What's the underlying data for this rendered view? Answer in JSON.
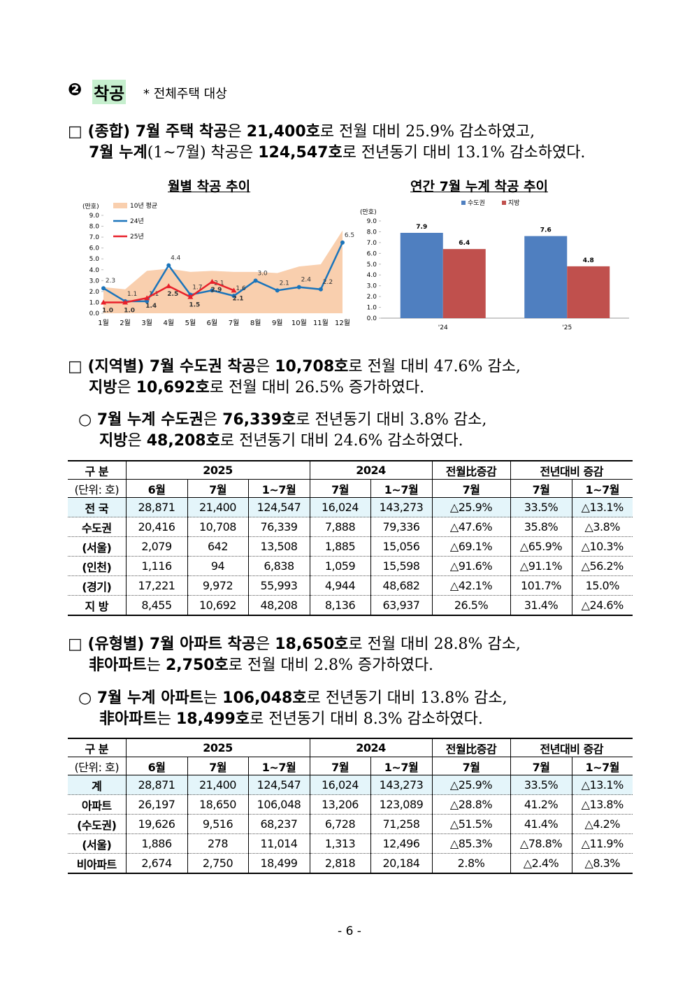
{
  "section": {
    "number": "❷",
    "title": "착공",
    "note": "* 전체주택 대상"
  },
  "paragraphs": [
    {
      "lines": [
        [
          {
            "text": "□ (종합) 7월 주택 착공",
            "bold": true
          },
          {
            "text": "은 ",
            "bold": false
          },
          {
            "text": "21,400호",
            "bold": true
          },
          {
            "text": "로 전월 대비 25.9% 감소하였고,",
            "bold": false
          }
        ],
        [
          {
            "text": "7월 누계",
            "bold": true
          },
          {
            "text": "(1~7월) 착공은 ",
            "bold": false
          },
          {
            "text": "124,547호",
            "bold": true
          },
          {
            "text": "로 전년동기 대비 13.1% 감소하였다.",
            "bold": false
          }
        ]
      ]
    },
    {
      "lines": [
        [
          {
            "text": "□ (지역별) 7월 수도권 착공",
            "bold": true
          },
          {
            "text": "은 ",
            "bold": false
          },
          {
            "text": "10,708호",
            "bold": true
          },
          {
            "text": "로 전월 대비 47.6% 감소,",
            "bold": false
          }
        ],
        [
          {
            "text": "지방",
            "bold": true
          },
          {
            "text": "은 ",
            "bold": false
          },
          {
            "text": "10,692호",
            "bold": true
          },
          {
            "text": "로 전월 대비 26.5% 증가하였다.",
            "bold": false
          }
        ]
      ]
    },
    {
      "lines": [
        [
          {
            "text": "○ 7월 누계 수도권",
            "bold": true
          },
          {
            "text": "은 ",
            "bold": false
          },
          {
            "text": "76,339호",
            "bold": true
          },
          {
            "text": "로 전년동기 대비 3.8% 감소,",
            "bold": false
          }
        ],
        [
          {
            "text": "지방",
            "bold": true
          },
          {
            "text": "은 ",
            "bold": false
          },
          {
            "text": "48,208호",
            "bold": true
          },
          {
            "text": "로 전년동기 대비 24.6% 감소하였다.",
            "bold": false
          }
        ]
      ]
    },
    {
      "lines": [
        [
          {
            "text": "□ (유형별) 7월 아파트 착공",
            "bold": true
          },
          {
            "text": "은 ",
            "bold": false
          },
          {
            "text": "18,650호",
            "bold": true
          },
          {
            "text": "로 전월 대비 28.8% 감소,",
            "bold": false
          }
        ],
        [
          {
            "text": "非아파트",
            "bold": true
          },
          {
            "text": "는 ",
            "bold": false
          },
          {
            "text": "2,750호",
            "bold": true
          },
          {
            "text": "로 전월 대비 2.8% 증가하였다.",
            "bold": false
          }
        ]
      ]
    },
    {
      "lines": [
        [
          {
            "text": "○ 7월 누계 아파트",
            "bold": true
          },
          {
            "text": "는 ",
            "bold": false
          },
          {
            "text": "106,048호",
            "bold": true
          },
          {
            "text": "로 전년동기 대비 13.8% 감소,",
            "bold": false
          }
        ],
        [
          {
            "text": "非아파트",
            "bold": true
          },
          {
            "text": "는 ",
            "bold": false
          },
          {
            "text": "18,499호",
            "bold": true
          },
          {
            "text": "로 전년동기 대비 8.3% 감소하였다.",
            "bold": false
          }
        ]
      ]
    }
  ],
  "chart_data": [
    {
      "type": "line",
      "title": "월별 착공 추이",
      "y_label": "(만호)",
      "categories": [
        "1월",
        "2월",
        "3월",
        "4월",
        "5월",
        "6월",
        "7월",
        "8월",
        "9월",
        "10월",
        "11월",
        "12월"
      ],
      "ylim": [
        0,
        9
      ],
      "yticks": [
        {
          "value": 0,
          "label": "0.0"
        },
        {
          "value": 1,
          "label": "1.0"
        },
        {
          "value": 2,
          "label": "2.0"
        },
        {
          "value": 3,
          "label": "3.0"
        },
        {
          "value": 4,
          "label": "4.0"
        },
        {
          "value": 5,
          "label": "5.0"
        },
        {
          "value": 6,
          "label": "6.0"
        },
        {
          "value": 7,
          "label": "7.0"
        },
        {
          "value": 8,
          "label": "8.0"
        },
        {
          "value": 9,
          "label": "9.0"
        }
      ],
      "series": [
        {
          "name": "10년 평균",
          "color": "#f9cfae",
          "style": "area",
          "values": [
            2.4,
            2.2,
            3.9,
            4.1,
            3.8,
            3.9,
            3.8,
            3.8,
            3.7,
            4.3,
            4.5,
            7.6
          ]
        },
        {
          "name": "24년",
          "color": "#1a74bb",
          "style": "line",
          "values": [
            2.3,
            1.1,
            1.1,
            4.4,
            1.7,
            2.1,
            1.6,
            3.0,
            2.1,
            2.4,
            2.2,
            6.5
          ],
          "value_labels": [
            "2.3",
            "1.1",
            "1.1",
            "4.4",
            "1.7",
            "2.1",
            "1.6",
            "3.0",
            "2.1",
            "2.4",
            "2.2",
            "6.5"
          ]
        },
        {
          "name": "25년",
          "color": "#e8202a",
          "style": "line",
          "values": [
            1.0,
            1.0,
            1.4,
            2.5,
            1.5,
            2.9,
            2.1,
            null,
            null,
            null,
            null,
            null
          ],
          "value_labels": [
            "1.0",
            "1.0",
            "1.4",
            "2.5",
            "1.5",
            "2.9",
            "2.1",
            null,
            null,
            null,
            null,
            null
          ]
        }
      ]
    },
    {
      "type": "bar",
      "title": "연간 7월 누계 착공 추이",
      "y_label": "(만호)",
      "categories": [
        "'24",
        "'25"
      ],
      "ylim": [
        0,
        9
      ],
      "yticks": [
        {
          "value": 0,
          "label": "0.0"
        },
        {
          "value": 1,
          "label": "1.0"
        },
        {
          "value": 2,
          "label": "2.0"
        },
        {
          "value": 3,
          "label": "3.0"
        },
        {
          "value": 4,
          "label": "4.0"
        },
        {
          "value": 5,
          "label": "5.0"
        },
        {
          "value": 6,
          "label": "6.0"
        },
        {
          "value": 7,
          "label": "7.0"
        },
        {
          "value": 8,
          "label": "8.0"
        },
        {
          "value": 9,
          "label": "9.0"
        }
      ],
      "series": [
        {
          "name": "수도권",
          "color": "#4f7fc0",
          "values": [
            7.9,
            7.6
          ]
        },
        {
          "name": "지방",
          "color": "#c0504d",
          "values": [
            6.4,
            4.8
          ]
        }
      ]
    }
  ],
  "tables": [
    {
      "header": [
        [
          {
            "text": "구 분"
          },
          {
            "text": "2025",
            "span": 3
          },
          {
            "text": "2024",
            "span": 2
          },
          {
            "text": "전월比증감"
          },
          {
            "text": "전년대비 증감",
            "span": 2
          }
        ],
        [
          {
            "text": "(단위: 호)"
          },
          {
            "text": "6월"
          },
          {
            "text": "7월"
          },
          {
            "text": "1~7월"
          },
          {
            "text": "7월"
          },
          {
            "text": "1~7월"
          },
          {
            "text": "7월"
          },
          {
            "text": "7월"
          },
          {
            "text": "1~7월"
          }
        ]
      ],
      "rows": [
        [
          "전 국",
          "28,871",
          "21,400",
          "124,547",
          "16,024",
          "143,273",
          "△25.9%",
          "33.5%",
          "△13.1%"
        ],
        [
          "수도권",
          "20,416",
          "10,708",
          "76,339",
          "7,888",
          "79,336",
          "△47.6%",
          "35.8%",
          "△3.8%"
        ],
        [
          "(서울)",
          "2,079",
          "642",
          "13,508",
          "1,885",
          "15,056",
          "△69.1%",
          "△65.9%",
          "△10.3%"
        ],
        [
          "(인천)",
          "1,116",
          "94",
          "6,838",
          "1,059",
          "15,598",
          "△91.6%",
          "△91.1%",
          "△56.2%"
        ],
        [
          "(경기)",
          "17,221",
          "9,972",
          "55,993",
          "4,944",
          "48,682",
          "△42.1%",
          "101.7%",
          "15.0%"
        ],
        [
          "지 방",
          "8,455",
          "10,692",
          "48,208",
          "8,136",
          "63,937",
          "26.5%",
          "31.4%",
          "△24.6%"
        ]
      ]
    },
    {
      "header": [
        [
          {
            "text": "구 분"
          },
          {
            "text": "2025",
            "span": 3
          },
          {
            "text": "2024",
            "span": 2
          },
          {
            "text": "전월比증감"
          },
          {
            "text": "전년대비 증감",
            "span": 2
          }
        ],
        [
          {
            "text": "(단위: 호)"
          },
          {
            "text": "6월"
          },
          {
            "text": "7월"
          },
          {
            "text": "1~7월"
          },
          {
            "text": "7월"
          },
          {
            "text": "1~7월"
          },
          {
            "text": "7월"
          },
          {
            "text": "7월"
          },
          {
            "text": "1~7월"
          }
        ]
      ],
      "rows": [
        [
          "계",
          "28,871",
          "21,400",
          "124,547",
          "16,024",
          "143,273",
          "△25.9%",
          "33.5%",
          "△13.1%"
        ],
        [
          "아파트",
          "26,197",
          "18,650",
          "106,048",
          "13,206",
          "123,089",
          "△28.8%",
          "41.2%",
          "△13.8%"
        ],
        [
          "(수도권)",
          "19,626",
          "9,516",
          "68,237",
          "6,728",
          "71,258",
          "△51.5%",
          "41.4%",
          "△4.2%"
        ],
        [
          "(서울)",
          "1,886",
          "278",
          "11,014",
          "1,313",
          "12,496",
          "△85.3%",
          "△78.8%",
          "△11.9%"
        ],
        [
          "비아파트",
          "2,674",
          "2,750",
          "18,499",
          "2,818",
          "20,184",
          "2.8%",
          "△2.4%",
          "△8.3%"
        ]
      ]
    }
  ],
  "footer": "- 6 -"
}
